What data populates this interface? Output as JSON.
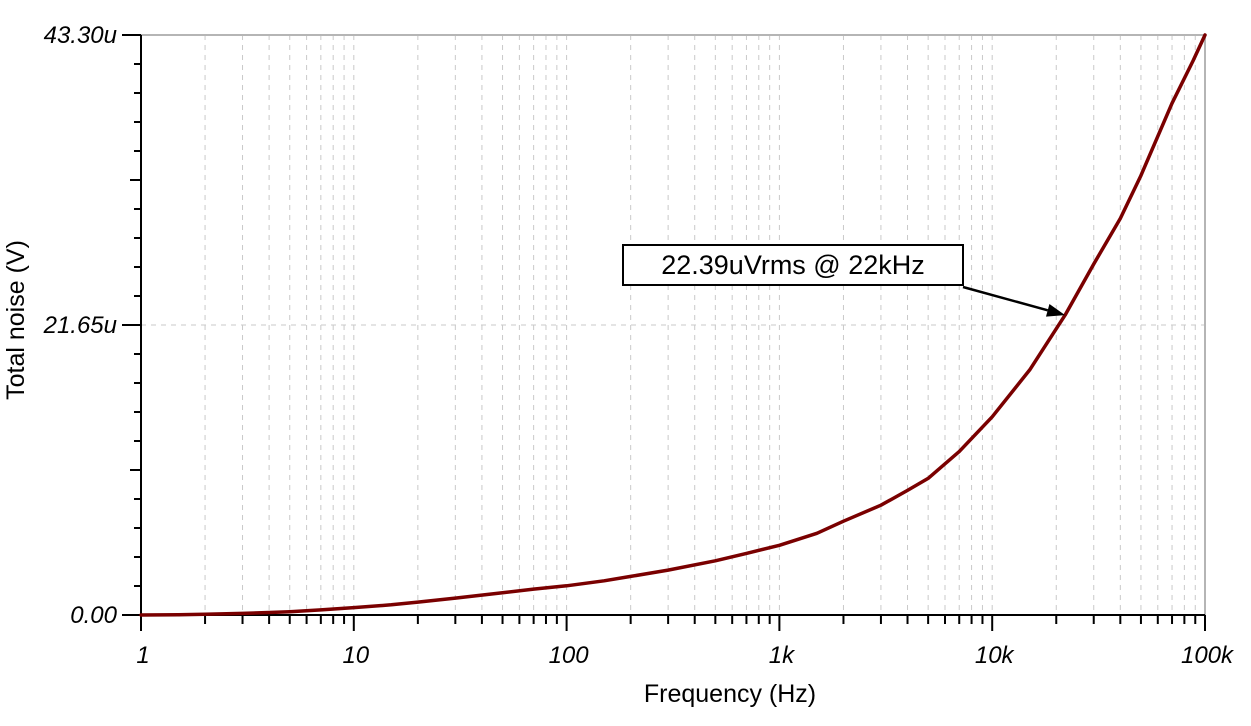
{
  "chart_data": {
    "type": "line",
    "title": "",
    "xlabel": "Frequency (Hz)",
    "ylabel": "Total noise (V)",
    "x_scale": "log",
    "x_range_hz": [
      1,
      100000
    ],
    "y_range": [
      "0.00",
      "43.30u"
    ],
    "y_max_uv": 43.3,
    "y_minor_step_uv": 2.165,
    "grid": "log-minor-dashed",
    "legend": "none",
    "x_ticks": [
      {
        "hz": 1,
        "label": "1"
      },
      {
        "hz": 10,
        "label": "10"
      },
      {
        "hz": 100,
        "label": "100"
      },
      {
        "hz": 1000,
        "label": "1k"
      },
      {
        "hz": 10000,
        "label": "10k"
      },
      {
        "hz": 100000,
        "label": "100k"
      }
    ],
    "y_ticks": [
      {
        "uv": 0,
        "label": "0.00"
      },
      {
        "uv": 21.65,
        "label": "21.65u"
      },
      {
        "uv": 43.3,
        "label": "43.30u"
      }
    ],
    "series": [
      {
        "name": "Total noise",
        "color": "#7a0000",
        "points_hz_uv": [
          [
            1,
            0
          ],
          [
            1.5,
            0.02
          ],
          [
            2,
            0.05
          ],
          [
            3,
            0.12
          ],
          [
            4,
            0.19
          ],
          [
            5,
            0.25
          ],
          [
            7,
            0.38
          ],
          [
            10,
            0.55
          ],
          [
            15,
            0.76
          ],
          [
            20,
            0.96
          ],
          [
            30,
            1.26
          ],
          [
            50,
            1.66
          ],
          [
            70,
            1.93
          ],
          [
            100,
            2.18
          ],
          [
            150,
            2.55
          ],
          [
            200,
            2.88
          ],
          [
            300,
            3.35
          ],
          [
            500,
            4.05
          ],
          [
            700,
            4.6
          ],
          [
            1000,
            5.2
          ],
          [
            1500,
            6.1
          ],
          [
            2000,
            7.0
          ],
          [
            3000,
            8.2
          ],
          [
            4000,
            9.3
          ],
          [
            5000,
            10.2
          ],
          [
            7000,
            12.2
          ],
          [
            10000,
            14.8
          ],
          [
            15000,
            18.3
          ],
          [
            22000,
            22.39
          ],
          [
            30000,
            26.2
          ],
          [
            40000,
            29.6
          ],
          [
            50000,
            32.8
          ],
          [
            70000,
            38.2
          ],
          [
            88000,
            41.4
          ],
          [
            100000,
            43.3
          ]
        ]
      }
    ],
    "annotation": {
      "label": "22.39uVrms @ 22kHz",
      "x_hz": 22000,
      "y_uv": 22.39
    }
  },
  "colors": {
    "curve": "#7a0000",
    "axis": "#000000",
    "grid_dashed": "#c9c9c9",
    "border_gray": "#b5b5b5",
    "background": "#ffffff",
    "text": "#000000"
  }
}
